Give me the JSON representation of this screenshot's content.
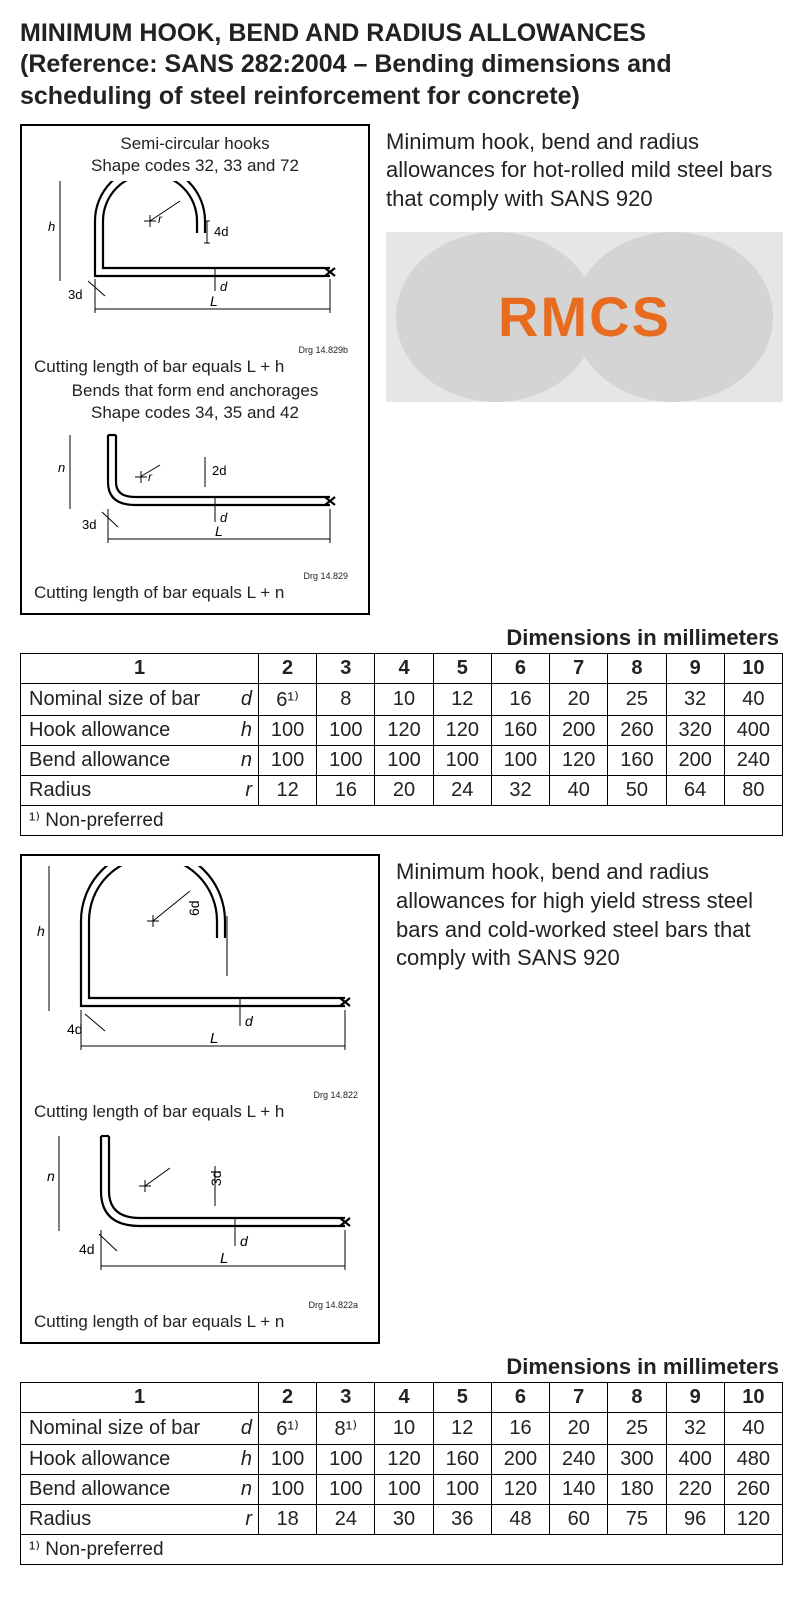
{
  "title": "MINIMUM HOOK, BEND AND RADIUS ALLOWANCES (Reference: SANS 282:2004 – Bending dimensions and scheduling of steel reinforcement for concrete)",
  "section1": {
    "diagram": {
      "caption1a": "Semi-circular hooks",
      "caption1b": "Shape codes 32, 33 and 72",
      "r_label": "3d",
      "ext_label": "4d",
      "d_label": "d",
      "L_label": "L",
      "h_label": "h",
      "drg1": "Drg 14.829b",
      "cutting1": "Cutting length of bar equals L + h",
      "caption2a": "Bends that form end anchorages",
      "caption2b": "Shape codes 34, 35 and 42",
      "n_label": "n",
      "ext2_label": "2d",
      "drg2": "Drg 14.829",
      "cutting2": "Cutting length of bar equals L + n"
    },
    "side_text": "Minimum hook, bend and radius allowances for hot-rolled mild steel bars that comply with SANS 920",
    "logo": {
      "text": "RMCS",
      "color": "#e86c1f"
    }
  },
  "table1": {
    "header": "Dimensions in millimeters",
    "columns": [
      "1",
      "2",
      "3",
      "4",
      "5",
      "6",
      "7",
      "8",
      "9",
      "10"
    ],
    "rows": [
      {
        "label": "Nominal size of bar",
        "sym": "d",
        "vals": [
          "6¹⁾",
          "8",
          "10",
          "12",
          "16",
          "20",
          "25",
          "32",
          "40"
        ]
      },
      {
        "label": "Hook allowance",
        "sym": "h",
        "vals": [
          "100",
          "100",
          "120",
          "120",
          "160",
          "200",
          "260",
          "320",
          "400"
        ]
      },
      {
        "label": "Bend allowance",
        "sym": "n",
        "vals": [
          "100",
          "100",
          "100",
          "100",
          "100",
          "120",
          "160",
          "200",
          "240"
        ]
      },
      {
        "label": "Radius",
        "sym": "r",
        "vals": [
          "12",
          "16",
          "20",
          "24",
          "32",
          "40",
          "50",
          "64",
          "80"
        ]
      }
    ],
    "footnote": "¹⁾  Non-preferred"
  },
  "section2": {
    "diagram": {
      "r_label": "4d",
      "ext_label": "6d",
      "d_label": "d",
      "L_label": "L",
      "h_label": "h",
      "drg1": "Drg 14.822",
      "cutting1": "Cutting length of bar equals L + h",
      "n_label": "n",
      "ext2_label": "3d",
      "drg2": "Drg 14.822a",
      "cutting2": "Cutting length of bar equals L + n"
    },
    "side_text": "Minimum hook, bend and radius allowances for high yield stress steel bars and cold-worked steel bars that comply with SANS 920"
  },
  "table2": {
    "header": "Dimensions in millimeters",
    "columns": [
      "1",
      "2",
      "3",
      "4",
      "5",
      "6",
      "7",
      "8",
      "9",
      "10"
    ],
    "rows": [
      {
        "label": "Nominal size of bar",
        "sym": "d",
        "vals": [
          "6¹⁾",
          "8¹⁾",
          "10",
          "12",
          "16",
          "20",
          "25",
          "32",
          "40"
        ]
      },
      {
        "label": "Hook allowance",
        "sym": "h",
        "vals": [
          "100",
          "100",
          "120",
          "160",
          "200",
          "240",
          "300",
          "400",
          "480"
        ]
      },
      {
        "label": "Bend allowance",
        "sym": "n",
        "vals": [
          "100",
          "100",
          "100",
          "100",
          "120",
          "140",
          "180",
          "220",
          "260"
        ]
      },
      {
        "label": "Radius",
        "sym": "r",
        "vals": [
          "18",
          "24",
          "30",
          "36",
          "48",
          "60",
          "75",
          "96",
          "120"
        ]
      }
    ],
    "footnote": "¹⁾  Non-preferred"
  },
  "style": {
    "stroke": "#000000",
    "stroke_width": 2.2,
    "font": "Arial"
  }
}
